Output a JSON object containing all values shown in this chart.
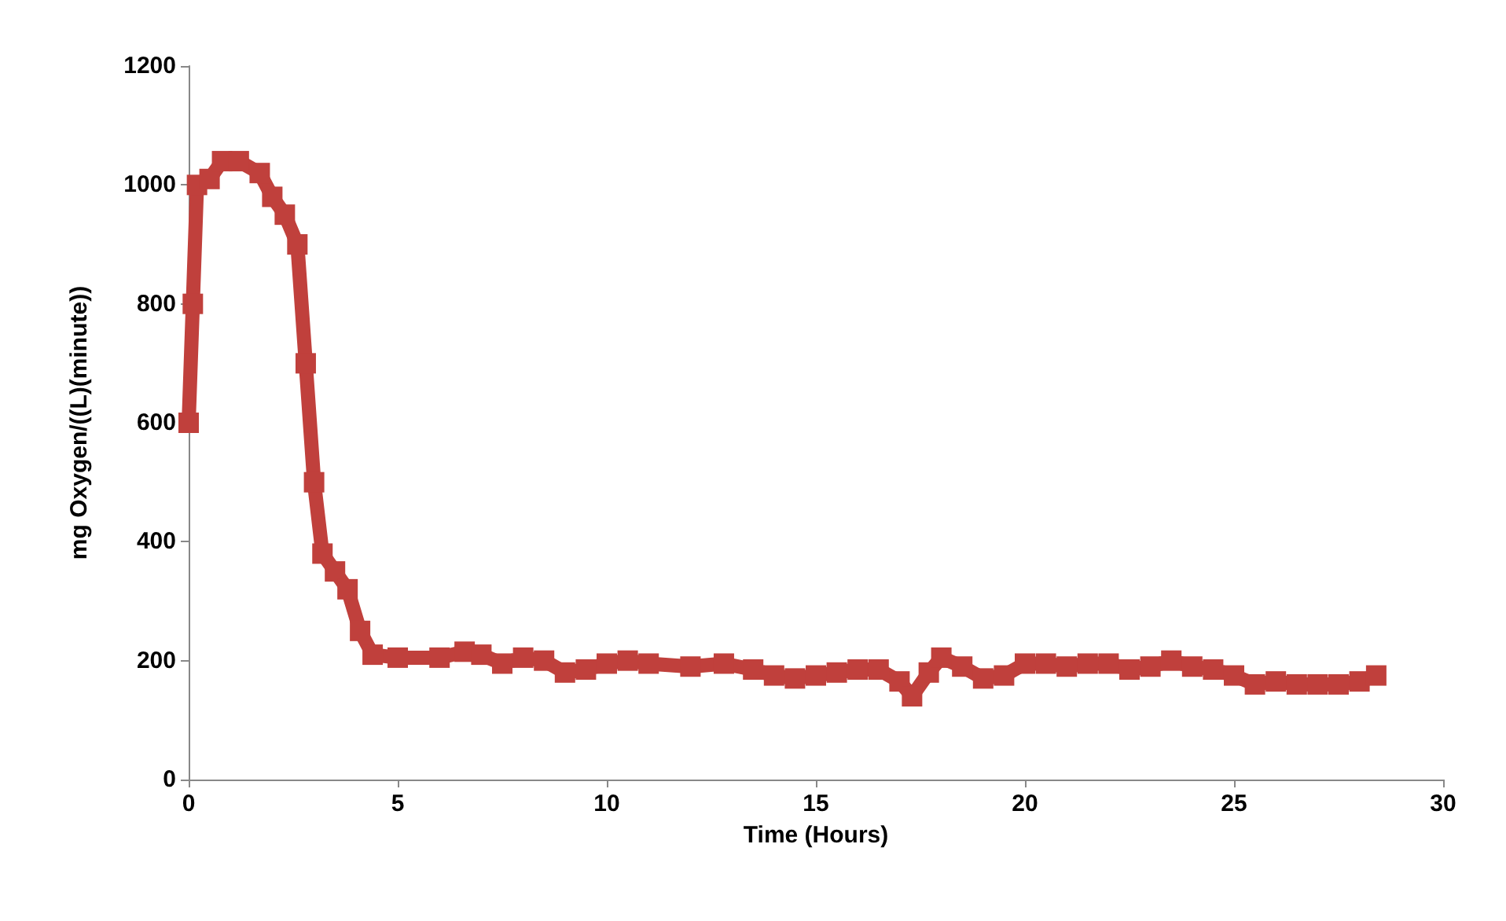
{
  "chart_data": {
    "type": "line",
    "xlabel": "Time (Hours)",
    "ylabel": "mg Oxygen/((L)(minute))",
    "x": [
      0,
      0.1,
      0.2,
      0.5,
      0.8,
      1.2,
      1.7,
      2.0,
      2.3,
      2.6,
      2.8,
      3.0,
      3.2,
      3.5,
      3.8,
      4.1,
      4.4,
      5,
      6,
      6.6,
      7,
      7.5,
      8,
      8.5,
      9,
      9.5,
      10,
      10.5,
      11,
      12,
      12.8,
      13.5,
      14,
      14.5,
      15,
      15.5,
      16,
      16.5,
      17,
      17.3,
      17.7,
      18,
      18.5,
      19,
      19.5,
      20,
      20.5,
      21,
      21.5,
      22,
      22.5,
      23,
      23.5,
      24,
      24.5,
      25,
      25.5,
      26,
      26.5,
      27,
      27.5,
      28,
      28.4
    ],
    "series": [
      {
        "color": "#c0403c",
        "values": [
          600,
          800,
          1000,
          1010,
          1040,
          1040,
          1020,
          980,
          950,
          900,
          700,
          500,
          380,
          350,
          320,
          250,
          210,
          205,
          205,
          215,
          210,
          195,
          205,
          200,
          180,
          185,
          195,
          200,
          195,
          190,
          195,
          185,
          175,
          170,
          175,
          180,
          185,
          185,
          165,
          140,
          180,
          205,
          190,
          170,
          175,
          195,
          195,
          190,
          195,
          195,
          185,
          190,
          200,
          190,
          185,
          175,
          160,
          165,
          160,
          160,
          160,
          165,
          175
        ]
      }
    ],
    "xlim": [
      0,
      30
    ],
    "xticks": [
      0,
      5,
      10,
      15,
      20,
      25,
      30
    ],
    "ylim": [
      0,
      1200
    ],
    "yticks": [
      0,
      200,
      400,
      600,
      800,
      1000,
      1200
    ],
    "grid": false,
    "marker": "square",
    "line_style": "solid"
  }
}
